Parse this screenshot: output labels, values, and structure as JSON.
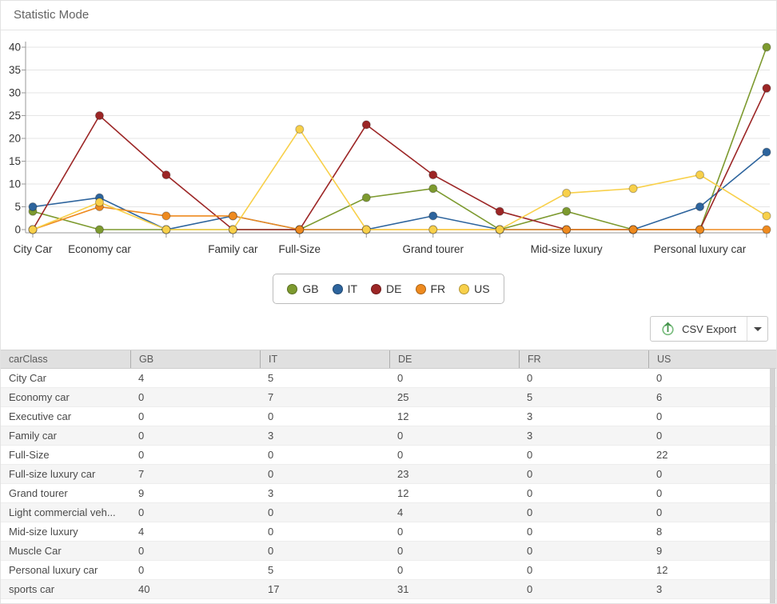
{
  "window": {
    "title": "Statistic Mode"
  },
  "chart_data": {
    "type": "line",
    "title": "",
    "xlabel": "carClass",
    "ylabel": "",
    "categories": [
      "City Car",
      "Economy car",
      "Executive car",
      "Family car",
      "Full-Size",
      "Full-size luxury car",
      "Grand tourer",
      "Light commercial veh...",
      "Mid-size luxury",
      "Muscle Car",
      "Personal luxury car",
      "sports car"
    ],
    "x_axis_labels_shown": [
      "City Car",
      "Economy car",
      "",
      "Family car",
      "Full-Size",
      "",
      "Grand tourer",
      "",
      "Mid-size luxury",
      "",
      "Personal luxury car",
      ""
    ],
    "series": [
      {
        "name": "GB",
        "color": "#7d9a2f",
        "values": [
          4,
          0,
          0,
          0,
          0,
          7,
          9,
          0,
          4,
          0,
          0,
          40
        ]
      },
      {
        "name": "IT",
        "color": "#2d649d",
        "values": [
          5,
          7,
          0,
          3,
          0,
          0,
          3,
          0,
          0,
          0,
          5,
          17
        ]
      },
      {
        "name": "DE",
        "color": "#9c2626",
        "values": [
          0,
          25,
          12,
          0,
          0,
          23,
          12,
          4,
          0,
          0,
          0,
          31
        ]
      },
      {
        "name": "FR",
        "color": "#ee8a1f",
        "values": [
          0,
          5,
          3,
          3,
          0,
          0,
          0,
          0,
          0,
          0,
          0,
          0
        ]
      },
      {
        "name": "US",
        "color": "#f8d04a",
        "values": [
          0,
          6,
          0,
          0,
          22,
          0,
          0,
          0,
          8,
          9,
          12,
          3
        ]
      }
    ],
    "ylim": [
      0,
      40
    ],
    "yticks": [
      0,
      5,
      10,
      15,
      20,
      25,
      30,
      35,
      40
    ],
    "grid": "horizontal",
    "legend_position": "bottom-center"
  },
  "legend": {
    "items": [
      {
        "label": "GB",
        "color": "#7d9a2f"
      },
      {
        "label": "IT",
        "color": "#2d649d"
      },
      {
        "label": "DE",
        "color": "#9c2626"
      },
      {
        "label": "FR",
        "color": "#ee8a1f"
      },
      {
        "label": "US",
        "color": "#f8d04a"
      }
    ]
  },
  "toolbar": {
    "csv_export_label": "CSV Export"
  },
  "table": {
    "columns": [
      "carClass",
      "GB",
      "IT",
      "DE",
      "FR",
      "US"
    ],
    "rows": [
      [
        "City Car",
        "4",
        "5",
        "0",
        "0",
        "0"
      ],
      [
        "Economy car",
        "0",
        "7",
        "25",
        "5",
        "6"
      ],
      [
        "Executive car",
        "0",
        "0",
        "12",
        "3",
        "0"
      ],
      [
        "Family car",
        "0",
        "3",
        "0",
        "3",
        "0"
      ],
      [
        "Full-Size",
        "0",
        "0",
        "0",
        "0",
        "22"
      ],
      [
        "Full-size luxury car",
        "7",
        "0",
        "23",
        "0",
        "0"
      ],
      [
        "Grand tourer",
        "9",
        "3",
        "12",
        "0",
        "0"
      ],
      [
        "Light commercial veh...",
        "0",
        "0",
        "4",
        "0",
        "0"
      ],
      [
        "Mid-size luxury",
        "4",
        "0",
        "0",
        "0",
        "8"
      ],
      [
        "Muscle Car",
        "0",
        "0",
        "0",
        "0",
        "9"
      ],
      [
        "Personal luxury car",
        "0",
        "5",
        "0",
        "0",
        "12"
      ],
      [
        "sports car",
        "40",
        "17",
        "31",
        "0",
        "3"
      ]
    ]
  }
}
